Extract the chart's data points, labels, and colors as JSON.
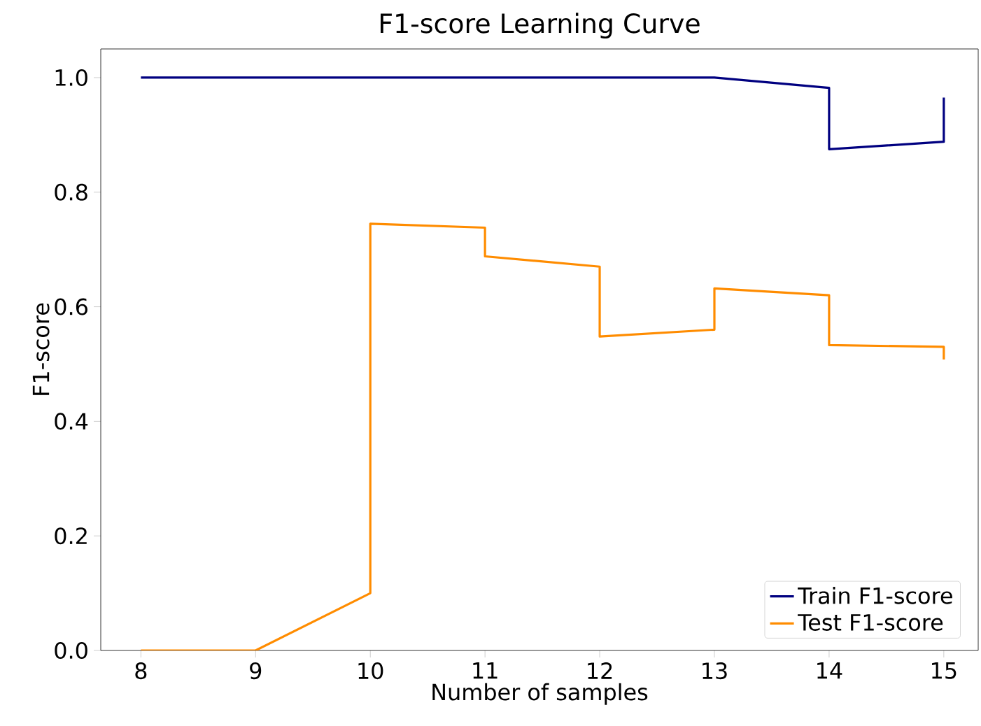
{
  "chart_data": {
    "type": "line",
    "title": "F1-score Learning Curve",
    "xlabel": "Number of samples",
    "ylabel": "F1-score",
    "xlim": [
      7.65,
      15.3
    ],
    "ylim": [
      0,
      1.05
    ],
    "xticks": [
      8,
      9,
      10,
      11,
      12,
      13,
      14,
      15
    ],
    "yticks": [
      {
        "value": 0,
        "label": "0.0"
      },
      {
        "value": 0.2,
        "label": "0.2"
      },
      {
        "value": 0.4,
        "label": "0.4"
      },
      {
        "value": 0.6,
        "label": "0.6"
      },
      {
        "value": 0.8,
        "label": "0.8"
      },
      {
        "value": 1,
        "label": "1.0"
      }
    ],
    "grid": false,
    "legend": "bottom right",
    "marker": "none",
    "line_style": "solid",
    "series": [
      {
        "name": "Train F1-score",
        "color": "#000080",
        "x": [
          8,
          13,
          14,
          14,
          15,
          15
        ],
        "values": [
          1,
          1,
          0.982,
          0.875,
          0.888,
          0.965
        ]
      },
      {
        "name": "Test F1-score",
        "color": "#ff8c00",
        "x": [
          8,
          9,
          10,
          10,
          11,
          11,
          12,
          12,
          13,
          13,
          14,
          14,
          15,
          15
        ],
        "values": [
          0,
          0,
          0.1,
          0.745,
          0.738,
          0.688,
          0.67,
          0.548,
          0.56,
          0.632,
          0.62,
          0.533,
          0.53,
          0.508
        ]
      }
    ]
  }
}
